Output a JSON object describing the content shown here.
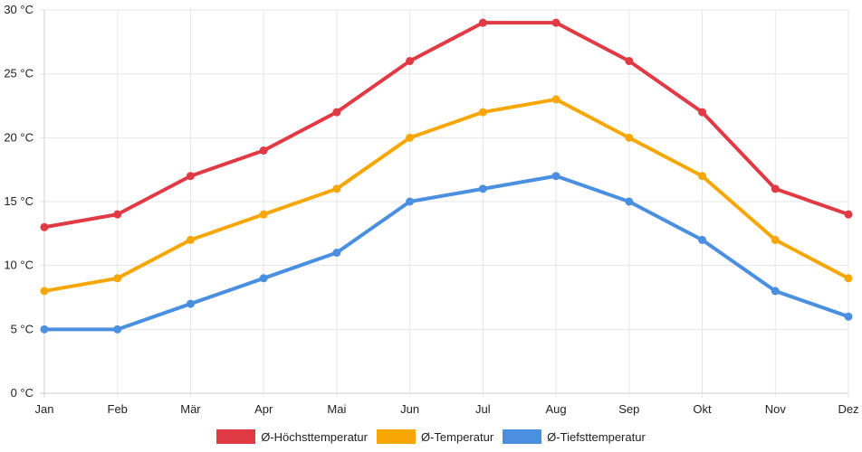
{
  "chart_data": {
    "type": "line",
    "title": "",
    "xlabel": "",
    "ylabel": "",
    "categories": [
      "Jan",
      "Feb",
      "Mär",
      "Apr",
      "Mai",
      "Jun",
      "Jul",
      "Aug",
      "Sep",
      "Okt",
      "Nov",
      "Dez"
    ],
    "ylim": [
      0,
      30
    ],
    "yticks": [
      0,
      5,
      10,
      15,
      20,
      25,
      30
    ],
    "ytick_labels": [
      "0 °C",
      "5 °C",
      "10 °C",
      "15 °C",
      "20 °C",
      "25 °C",
      "30 °C"
    ],
    "grid": true,
    "legend_position": "bottom",
    "series": [
      {
        "name": "Ø-Höchsttemperatur",
        "color": "#e03a45",
        "values": [
          13,
          14,
          17,
          19,
          22,
          26,
          29,
          29,
          26,
          22,
          16,
          14
        ]
      },
      {
        "name": "Ø-Temperatur",
        "color": "#f7a704",
        "values": [
          8,
          9,
          12,
          14,
          16,
          20,
          22,
          23,
          20,
          17,
          12,
          9
        ]
      },
      {
        "name": "Ø-Tiefsttemperatur",
        "color": "#4a8fe0",
        "values": [
          5,
          5,
          7,
          9,
          11,
          15,
          16,
          17,
          15,
          12,
          8,
          6
        ]
      }
    ]
  }
}
